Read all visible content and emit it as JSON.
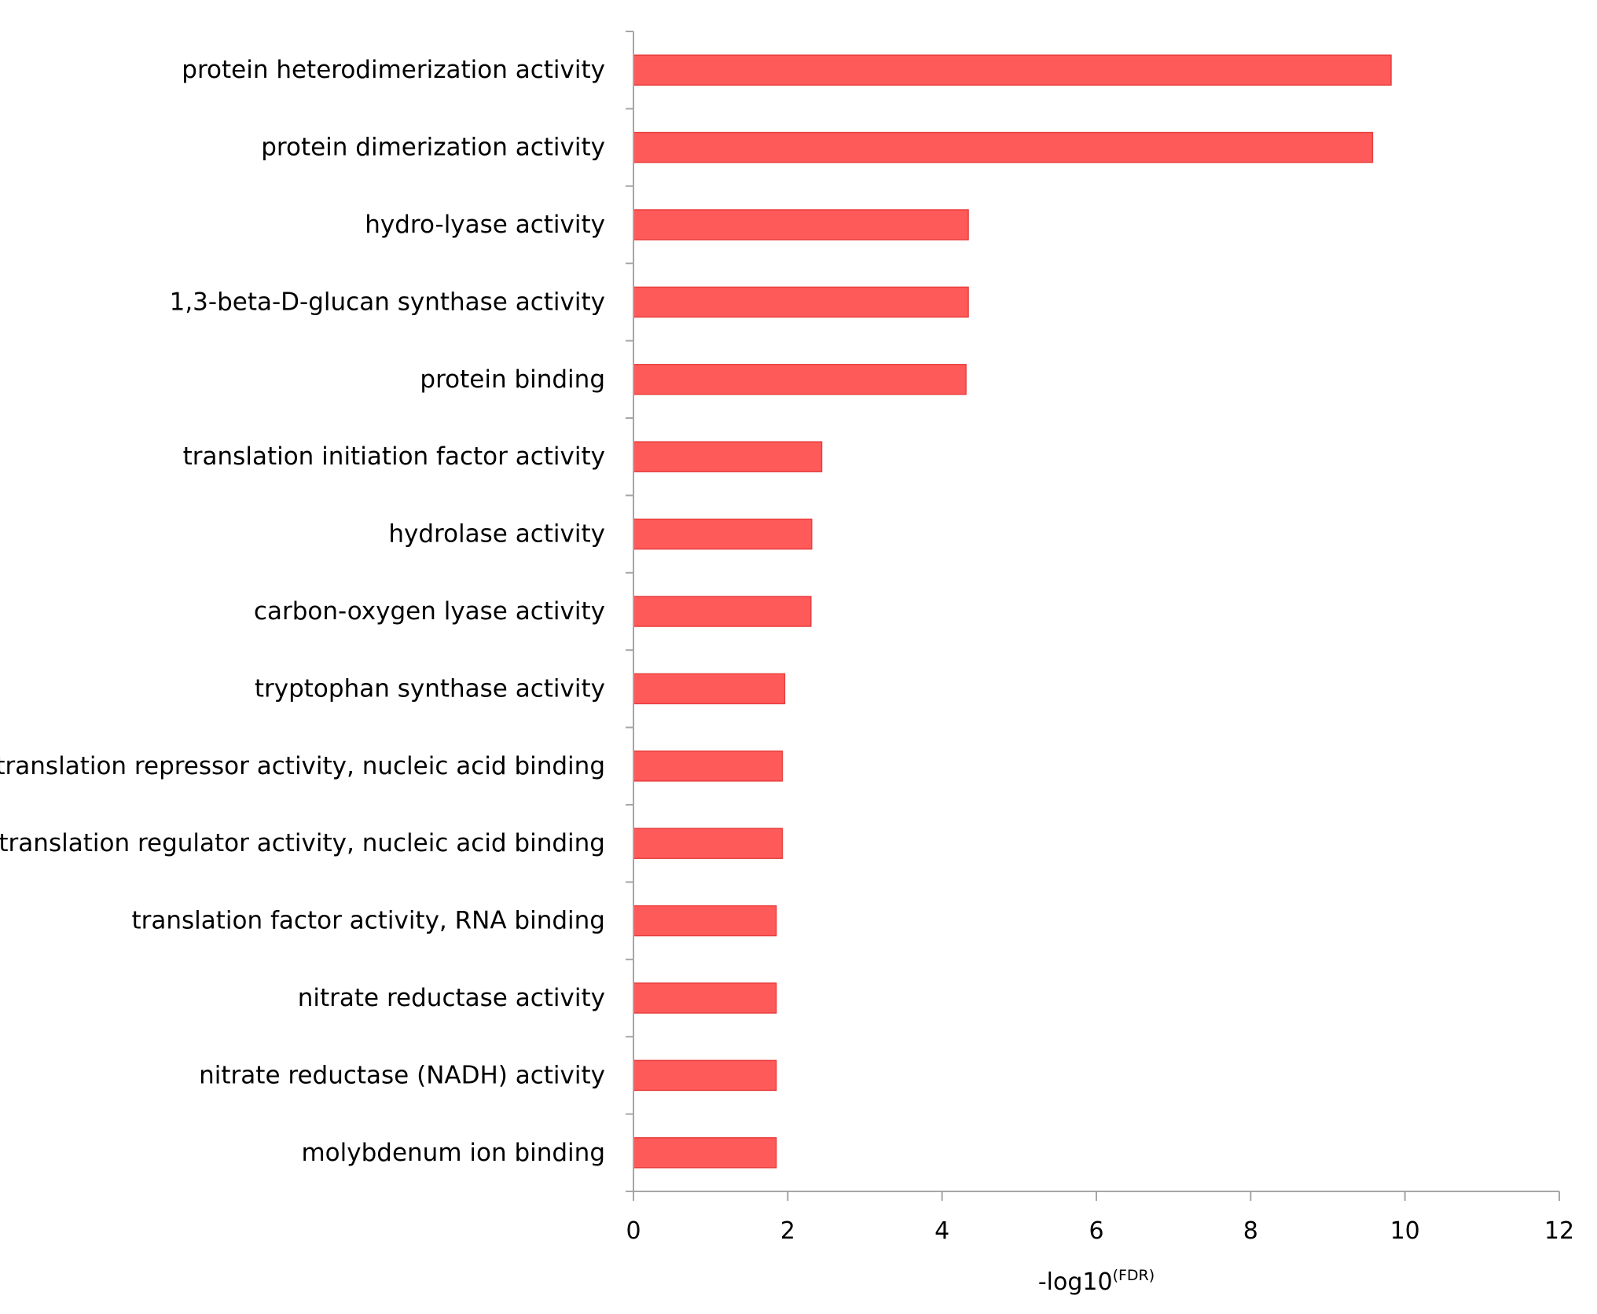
{
  "chart_data": {
    "type": "bar",
    "orientation": "horizontal",
    "categories": [
      "protein heterodimerization activity",
      "protein dimerization activity",
      "hydro-lyase activity",
      "1,3-beta-D-glucan synthase activity",
      "protein binding",
      "translation initiation factor activity",
      "hydrolase activity",
      "carbon-oxygen lyase activity",
      "tryptophan synthase activity",
      "translation repressor activity, nucleic acid binding",
      "translation regulator activity, nucleic acid binding",
      "translation factor activity, RNA binding",
      "nitrate reductase activity",
      "nitrate reductase (NADH) activity",
      "molybdenum ion binding"
    ],
    "values": [
      9.82,
      9.58,
      4.34,
      4.34,
      4.31,
      2.44,
      2.31,
      2.3,
      1.96,
      1.93,
      1.93,
      1.85,
      1.85,
      1.85,
      1.85
    ],
    "title": "",
    "xlabel": "-log10",
    "xlabel_superscript": "(FDR)",
    "ylabel": "",
    "xlim": [
      0,
      12
    ],
    "xticks": [
      "0",
      "2",
      "4",
      "6",
      "8",
      "10",
      "12"
    ],
    "grid": false,
    "legend": "none",
    "bar_color": "#ff5a5a",
    "bar_edge_color": "#e83e3e",
    "axis_color": "#a6a6a6"
  }
}
